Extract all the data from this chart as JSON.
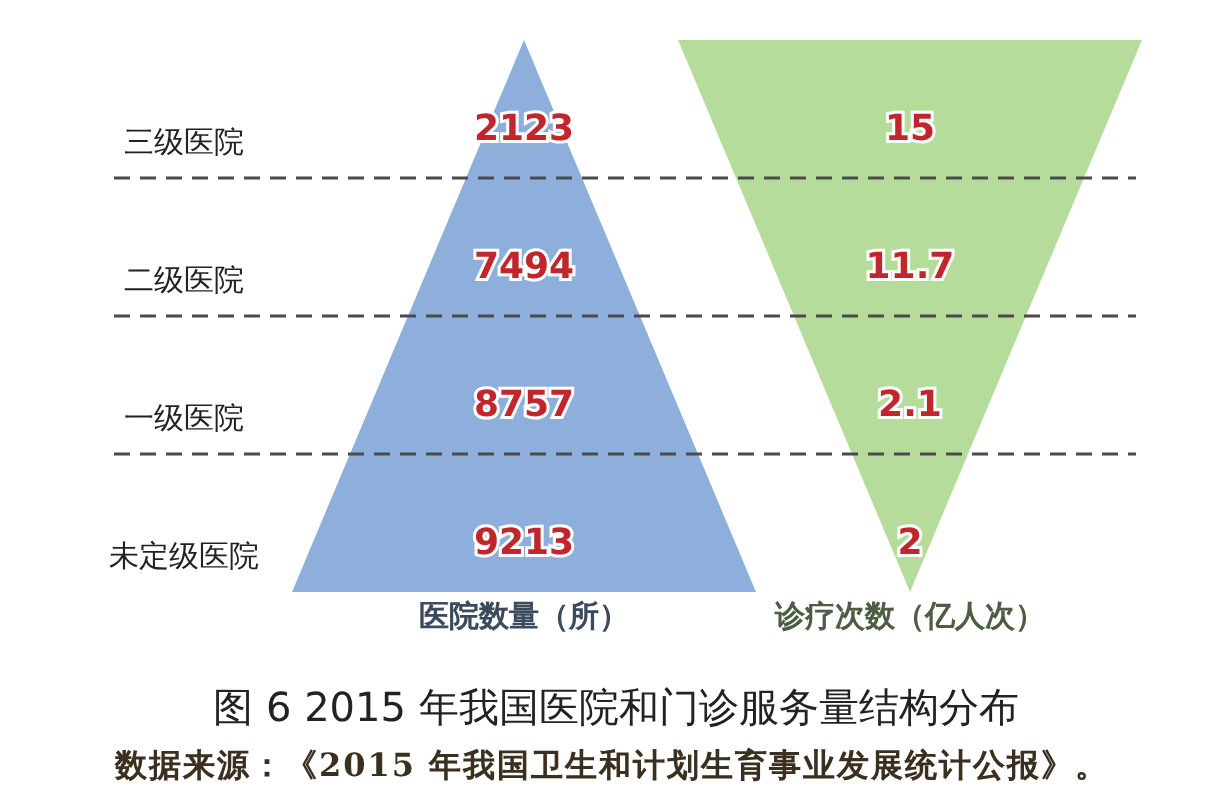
{
  "chart_data": {
    "type": "other",
    "title": "图 6 2015 年我国医院和门诊服务量结构分布",
    "annotations": [
      "数据来源：《2015 年我国卫生和计划生育事业发展统计公报》。"
    ],
    "categories": [
      "三级医院",
      "二级医院",
      "一级医院",
      "未定级医院"
    ],
    "series": [
      {
        "name": "医院数量（所）",
        "color": "#8eaedb",
        "values": [
          2123,
          7494,
          8757,
          9213
        ]
      },
      {
        "name": "诊疗次数（亿人次）",
        "color": "#b6dc9c",
        "values": [
          15,
          11.7,
          2.1,
          2
        ]
      }
    ],
    "data_labels": true,
    "legend": "bottom"
  }
}
